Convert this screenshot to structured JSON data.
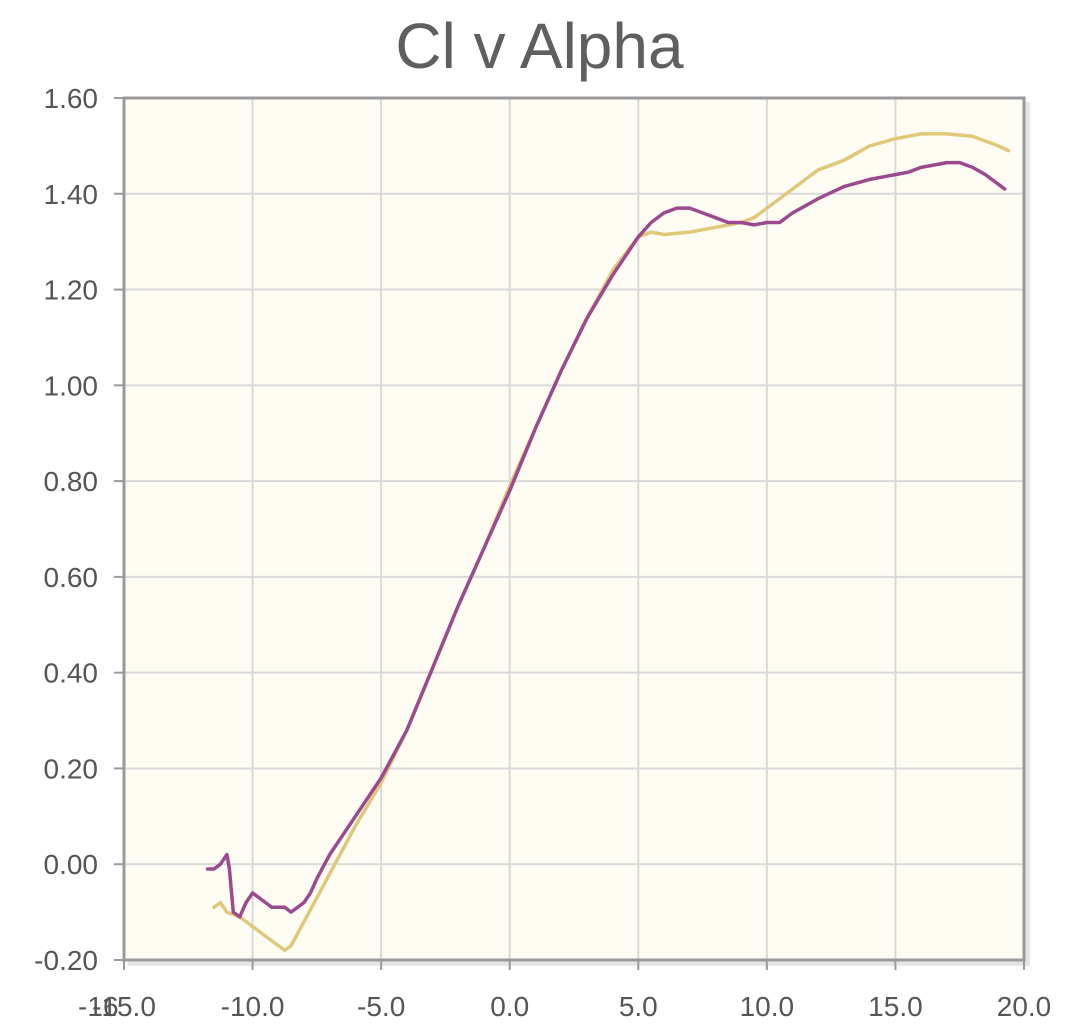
{
  "chart_data": {
    "type": "line",
    "title": "Cl v Alpha",
    "xlabel": "",
    "ylabel": "",
    "xlim": [
      -16,
      20
    ],
    "ylim": [
      -0.2,
      1.6
    ],
    "grid": true,
    "legend": "none",
    "background_color": "#fffdf3",
    "x_tick_labels": [
      "-16",
      "-15.0",
      "-10.0",
      "-5.0",
      "0.0",
      "5.0",
      "10.0",
      "15.0",
      "20.0"
    ],
    "x_tick_values": [
      -16,
      -15,
      -10,
      -5,
      0,
      5,
      10,
      15,
      20
    ],
    "y_tick_labels": [
      "1.60",
      "1.40",
      "1.20",
      "1.00",
      "0.80",
      "0.60",
      "0.40",
      "0.20",
      "0.00",
      "-0.20"
    ],
    "y_tick_values": [
      1.6,
      1.4,
      1.2,
      1.0,
      0.8,
      0.6,
      0.4,
      0.2,
      0.0,
      -0.2
    ],
    "series": [
      {
        "color": "#9b4a8e",
        "points": [
          [
            -11.75,
            -0.01
          ],
          [
            -11.5,
            -0.01
          ],
          [
            -11.25,
            0.0
          ],
          [
            -11.0,
            0.02
          ],
          [
            -10.9,
            -0.01
          ],
          [
            -10.75,
            -0.1
          ],
          [
            -10.5,
            -0.11
          ],
          [
            -10.25,
            -0.08
          ],
          [
            -10.0,
            -0.06
          ],
          [
            -9.75,
            -0.07
          ],
          [
            -9.5,
            -0.08
          ],
          [
            -9.25,
            -0.09
          ],
          [
            -9.0,
            -0.09
          ],
          [
            -8.75,
            -0.09
          ],
          [
            -8.5,
            -0.1
          ],
          [
            -8.25,
            -0.09
          ],
          [
            -8.0,
            -0.08
          ],
          [
            -7.75,
            -0.06
          ],
          [
            -7.5,
            -0.03
          ],
          [
            -7.0,
            0.02
          ],
          [
            -6.0,
            0.1
          ],
          [
            -5.0,
            0.18
          ],
          [
            -4.0,
            0.28
          ],
          [
            -3.0,
            0.41
          ],
          [
            -2.0,
            0.54
          ],
          [
            -1.0,
            0.66
          ],
          [
            0.0,
            0.78
          ],
          [
            1.0,
            0.91
          ],
          [
            2.0,
            1.03
          ],
          [
            3.0,
            1.14
          ],
          [
            4.0,
            1.23
          ],
          [
            5.0,
            1.31
          ],
          [
            5.5,
            1.34
          ],
          [
            6.0,
            1.36
          ],
          [
            6.5,
            1.37
          ],
          [
            7.0,
            1.37
          ],
          [
            7.5,
            1.36
          ],
          [
            8.0,
            1.35
          ],
          [
            8.5,
            1.34
          ],
          [
            9.0,
            1.34
          ],
          [
            9.5,
            1.335
          ],
          [
            10.0,
            1.34
          ],
          [
            10.5,
            1.34
          ],
          [
            11.0,
            1.36
          ],
          [
            11.5,
            1.375
          ],
          [
            12.0,
            1.39
          ],
          [
            13.0,
            1.415
          ],
          [
            14.0,
            1.43
          ],
          [
            15.0,
            1.44
          ],
          [
            15.5,
            1.445
          ],
          [
            16.0,
            1.455
          ],
          [
            17.0,
            1.465
          ],
          [
            17.5,
            1.465
          ],
          [
            18.0,
            1.455
          ],
          [
            18.5,
            1.44
          ],
          [
            19.0,
            1.42
          ],
          [
            19.25,
            1.41
          ]
        ]
      },
      {
        "color": "#e0c87a",
        "points": [
          [
            -11.5,
            -0.09
          ],
          [
            -11.25,
            -0.08
          ],
          [
            -11.0,
            -0.1
          ],
          [
            -10.5,
            -0.11
          ],
          [
            -10.0,
            -0.13
          ],
          [
            -9.5,
            -0.15
          ],
          [
            -9.0,
            -0.17
          ],
          [
            -8.75,
            -0.18
          ],
          [
            -8.5,
            -0.17
          ],
          [
            -8.0,
            -0.12
          ],
          [
            -7.5,
            -0.07
          ],
          [
            -7.0,
            -0.02
          ],
          [
            -6.0,
            0.08
          ],
          [
            -5.0,
            0.17
          ],
          [
            -4.0,
            0.28
          ],
          [
            -3.0,
            0.41
          ],
          [
            -2.0,
            0.54
          ],
          [
            -1.0,
            0.66
          ],
          [
            0.0,
            0.79
          ],
          [
            1.0,
            0.91
          ],
          [
            2.0,
            1.03
          ],
          [
            3.0,
            1.14
          ],
          [
            4.0,
            1.24
          ],
          [
            5.0,
            1.31
          ],
          [
            5.5,
            1.32
          ],
          [
            6.0,
            1.315
          ],
          [
            7.0,
            1.32
          ],
          [
            8.0,
            1.33
          ],
          [
            9.0,
            1.34
          ],
          [
            9.5,
            1.35
          ],
          [
            10.0,
            1.37
          ],
          [
            10.5,
            1.39
          ],
          [
            11.0,
            1.41
          ],
          [
            11.5,
            1.43
          ],
          [
            12.0,
            1.45
          ],
          [
            13.0,
            1.47
          ],
          [
            14.0,
            1.5
          ],
          [
            15.0,
            1.515
          ],
          [
            16.0,
            1.525
          ],
          [
            17.0,
            1.525
          ],
          [
            18.0,
            1.52
          ],
          [
            18.5,
            1.51
          ],
          [
            19.0,
            1.5
          ],
          [
            19.4,
            1.49
          ]
        ]
      }
    ]
  }
}
